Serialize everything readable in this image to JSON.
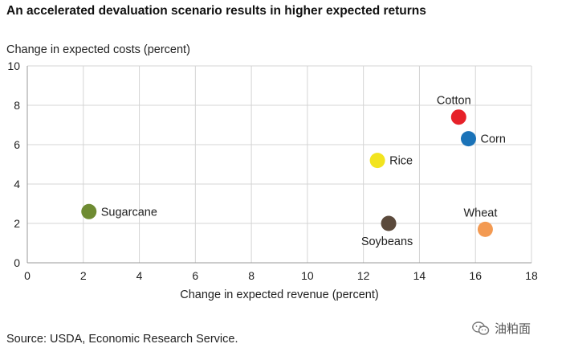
{
  "chart_data": {
    "type": "scatter",
    "title": "An accelerated devaluation scenario results in higher expected returns",
    "xlabel": "Change in expected revenue (percent)",
    "ylabel": "Change in expected costs (percent)",
    "xlim": [
      0,
      18
    ],
    "ylim": [
      0,
      10
    ],
    "xticks": [
      0,
      2,
      4,
      6,
      8,
      10,
      12,
      14,
      16,
      18
    ],
    "yticks": [
      0,
      2,
      4,
      6,
      8,
      10
    ],
    "grid": true,
    "points": [
      {
        "name": "Sugarcane",
        "x": 2.2,
        "y": 2.6,
        "color": "#6e8b32",
        "label_pos": "right"
      },
      {
        "name": "Rice",
        "x": 12.5,
        "y": 5.2,
        "color": "#f2e41f",
        "label_pos": "right"
      },
      {
        "name": "Soybeans",
        "x": 12.9,
        "y": 2.0,
        "color": "#5b4a3c",
        "label_pos": "below"
      },
      {
        "name": "Cotton",
        "x": 15.4,
        "y": 7.4,
        "color": "#e62129",
        "label_pos": "above"
      },
      {
        "name": "Corn",
        "x": 15.75,
        "y": 6.3,
        "color": "#1b73b8",
        "label_pos": "right"
      },
      {
        "name": "Wheat",
        "x": 16.35,
        "y": 1.7,
        "color": "#f39a52",
        "label_pos": "above"
      }
    ]
  },
  "source": "Source: USDA, Economic Research Service.",
  "watermark": {
    "text": "油粕面",
    "icon": "wechat-icon"
  }
}
